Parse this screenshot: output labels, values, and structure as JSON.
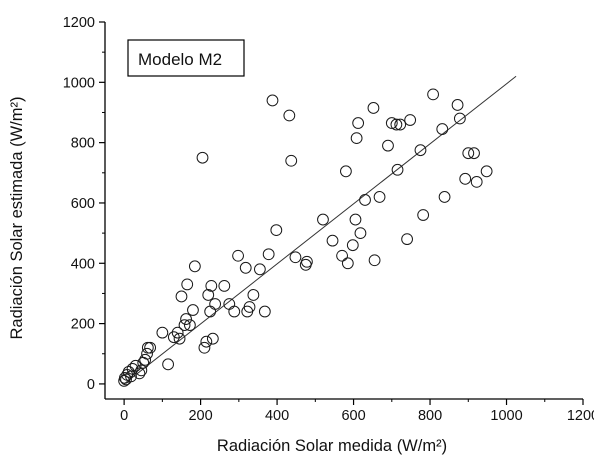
{
  "chart_data": {
    "type": "scatter",
    "title": "",
    "legend_label": "Modelo M2",
    "legend_position": "top-left",
    "grid": false,
    "xlabel": "Radiación Solar medida (W/m²)",
    "ylabel": "Radiación Solar estimada (W/m²)",
    "xlim": [
      -50,
      1200
    ],
    "ylim": [
      -50,
      1200
    ],
    "xticks": [
      0,
      200,
      400,
      600,
      800,
      1000,
      1200
    ],
    "yticks": [
      0,
      200,
      400,
      600,
      800,
      1000,
      1200
    ],
    "marker": "open-circle",
    "fit_line": {
      "x": [
        0,
        1025
      ],
      "y": [
        0,
        1020
      ]
    },
    "points": [
      {
        "x": 0,
        "y": 10
      },
      {
        "x": 2,
        "y": 20
      },
      {
        "x": 5,
        "y": 15
      },
      {
        "x": 8,
        "y": 30
      },
      {
        "x": 12,
        "y": 40
      },
      {
        "x": 18,
        "y": 25
      },
      {
        "x": 22,
        "y": 50
      },
      {
        "x": 30,
        "y": 60
      },
      {
        "x": 40,
        "y": 35
      },
      {
        "x": 45,
        "y": 45
      },
      {
        "x": 50,
        "y": 70
      },
      {
        "x": 55,
        "y": 80
      },
      {
        "x": 60,
        "y": 100
      },
      {
        "x": 62,
        "y": 120
      },
      {
        "x": 68,
        "y": 120
      },
      {
        "x": 100,
        "y": 170
      },
      {
        "x": 115,
        "y": 65
      },
      {
        "x": 130,
        "y": 155
      },
      {
        "x": 140,
        "y": 170
      },
      {
        "x": 145,
        "y": 150
      },
      {
        "x": 150,
        "y": 290
      },
      {
        "x": 158,
        "y": 195
      },
      {
        "x": 162,
        "y": 215
      },
      {
        "x": 165,
        "y": 330
      },
      {
        "x": 172,
        "y": 195
      },
      {
        "x": 180,
        "y": 245
      },
      {
        "x": 185,
        "y": 390
      },
      {
        "x": 205,
        "y": 750
      },
      {
        "x": 210,
        "y": 120
      },
      {
        "x": 215,
        "y": 140
      },
      {
        "x": 220,
        "y": 295
      },
      {
        "x": 225,
        "y": 240
      },
      {
        "x": 228,
        "y": 325
      },
      {
        "x": 232,
        "y": 150
      },
      {
        "x": 238,
        "y": 265
      },
      {
        "x": 262,
        "y": 325
      },
      {
        "x": 275,
        "y": 265
      },
      {
        "x": 288,
        "y": 240
      },
      {
        "x": 298,
        "y": 425
      },
      {
        "x": 318,
        "y": 385
      },
      {
        "x": 322,
        "y": 240
      },
      {
        "x": 328,
        "y": 255
      },
      {
        "x": 338,
        "y": 295
      },
      {
        "x": 355,
        "y": 380
      },
      {
        "x": 368,
        "y": 240
      },
      {
        "x": 378,
        "y": 430
      },
      {
        "x": 388,
        "y": 940
      },
      {
        "x": 398,
        "y": 510
      },
      {
        "x": 432,
        "y": 890
      },
      {
        "x": 437,
        "y": 740
      },
      {
        "x": 448,
        "y": 420
      },
      {
        "x": 475,
        "y": 395
      },
      {
        "x": 478,
        "y": 405
      },
      {
        "x": 520,
        "y": 545
      },
      {
        "x": 545,
        "y": 475
      },
      {
        "x": 570,
        "y": 425
      },
      {
        "x": 580,
        "y": 705
      },
      {
        "x": 585,
        "y": 400
      },
      {
        "x": 598,
        "y": 460
      },
      {
        "x": 605,
        "y": 545
      },
      {
        "x": 608,
        "y": 815
      },
      {
        "x": 612,
        "y": 865
      },
      {
        "x": 618,
        "y": 500
      },
      {
        "x": 630,
        "y": 610
      },
      {
        "x": 652,
        "y": 915
      },
      {
        "x": 655,
        "y": 410
      },
      {
        "x": 668,
        "y": 620
      },
      {
        "x": 690,
        "y": 790
      },
      {
        "x": 700,
        "y": 865
      },
      {
        "x": 712,
        "y": 860
      },
      {
        "x": 715,
        "y": 710
      },
      {
        "x": 722,
        "y": 860
      },
      {
        "x": 740,
        "y": 480
      },
      {
        "x": 748,
        "y": 875
      },
      {
        "x": 775,
        "y": 775
      },
      {
        "x": 782,
        "y": 560
      },
      {
        "x": 808,
        "y": 960
      },
      {
        "x": 832,
        "y": 845
      },
      {
        "x": 838,
        "y": 620
      },
      {
        "x": 872,
        "y": 925
      },
      {
        "x": 878,
        "y": 880
      },
      {
        "x": 892,
        "y": 680
      },
      {
        "x": 900,
        "y": 765
      },
      {
        "x": 915,
        "y": 765
      },
      {
        "x": 922,
        "y": 670
      },
      {
        "x": 948,
        "y": 705
      }
    ]
  }
}
